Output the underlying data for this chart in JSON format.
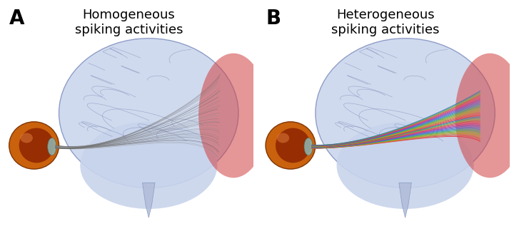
{
  "title_A": "Homogeneous\nspiking activities",
  "title_B": "Heterogeneous\nspiking activities",
  "label_A": "A",
  "label_B": "B",
  "bg_color": "#ffffff",
  "brain_fill_color": "#c8d4ec",
  "brain_edge_color": "#8090c0",
  "visual_cortex_color": "#d04040",
  "eye_outer_color": "#c85a00",
  "eye_inner_color": "#8b2000",
  "eye_implant_color": "#90b0a8",
  "fiber_gray_color": "#555555",
  "fiber_colors_B": [
    "#e63030",
    "#e05050",
    "#d06030",
    "#c09020",
    "#a0a020",
    "#80b020",
    "#50a050",
    "#30a080",
    "#3080c0",
    "#5060d0",
    "#7050c0",
    "#a030a0",
    "#d03070",
    "#e04060",
    "#c05030",
    "#90a030",
    "#40a060",
    "#3070b0"
  ],
  "label_fontsize": 20,
  "title_fontsize": 13,
  "figsize": [
    7.2,
    3.52
  ],
  "dpi": 100
}
